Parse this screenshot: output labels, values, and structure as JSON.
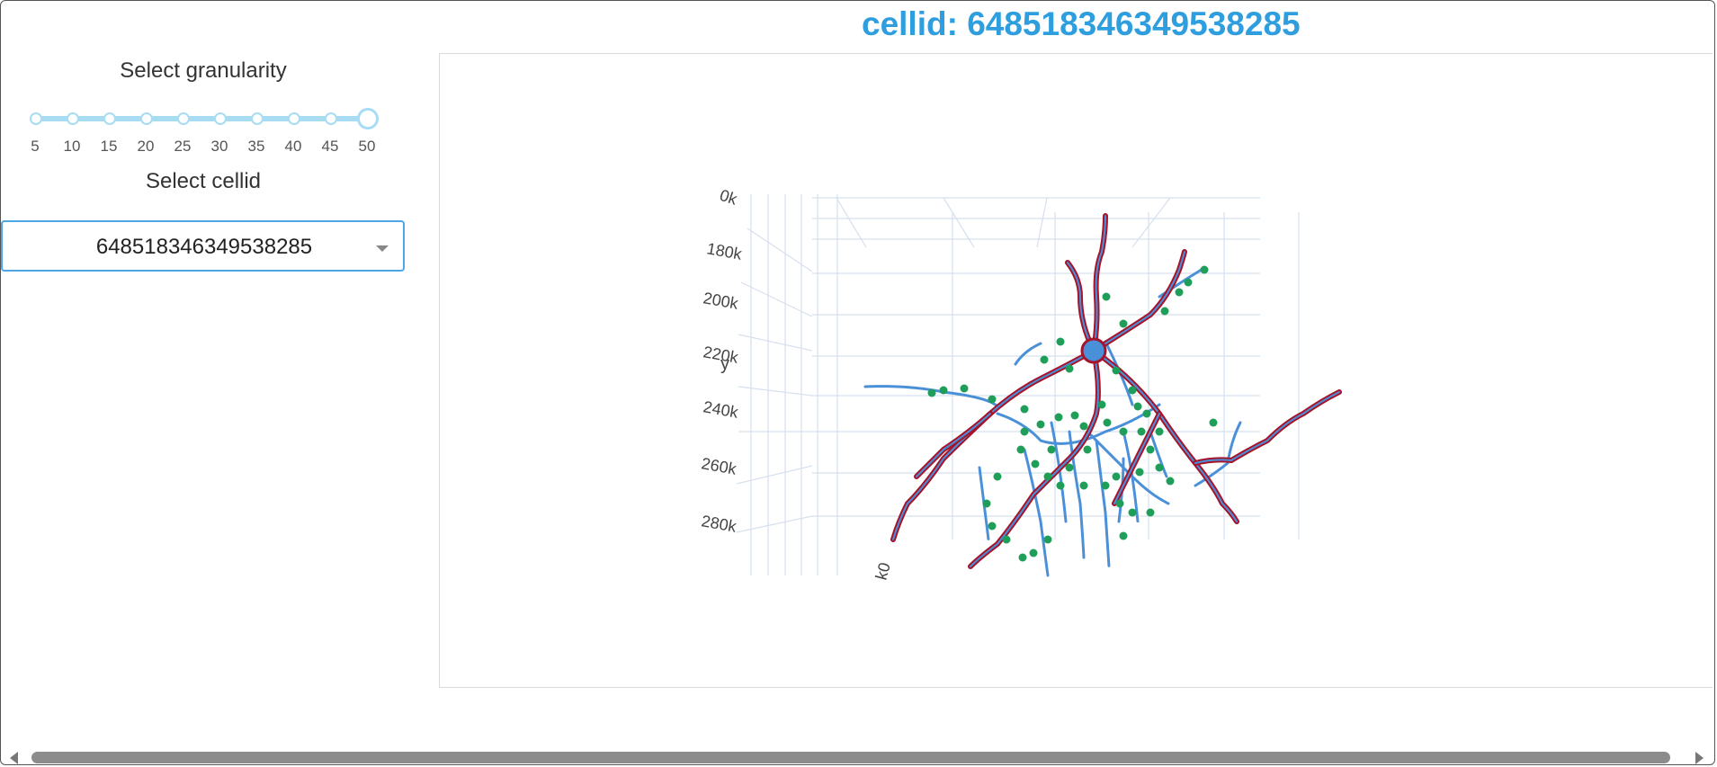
{
  "page_title": "cellid: 648518346349538285",
  "sidebar": {
    "granularity_label": "Select granularity",
    "granularity_marks": [
      "5",
      "10",
      "15",
      "20",
      "25",
      "30",
      "35",
      "40",
      "45",
      "50"
    ],
    "granularity_value": 50,
    "cellid_label": "Select cellid",
    "cellid_selected": "648518346349538285"
  },
  "plot": {
    "y_axis_title": "y",
    "y_ticks": [
      "0k",
      "180k",
      "200k",
      "220k",
      "240k",
      "260k",
      "280k"
    ],
    "x_partial_tick": "k0",
    "colors": {
      "axon_trace": "#4a90d9",
      "dendrite_marker": "#a5142b",
      "synapse": "#1e9e58",
      "grid": "#d6e0ee"
    }
  },
  "colors": {
    "accent": "#2f9ede",
    "slider": "#a8dcf3",
    "dropdown_border": "#4ea6e6"
  }
}
